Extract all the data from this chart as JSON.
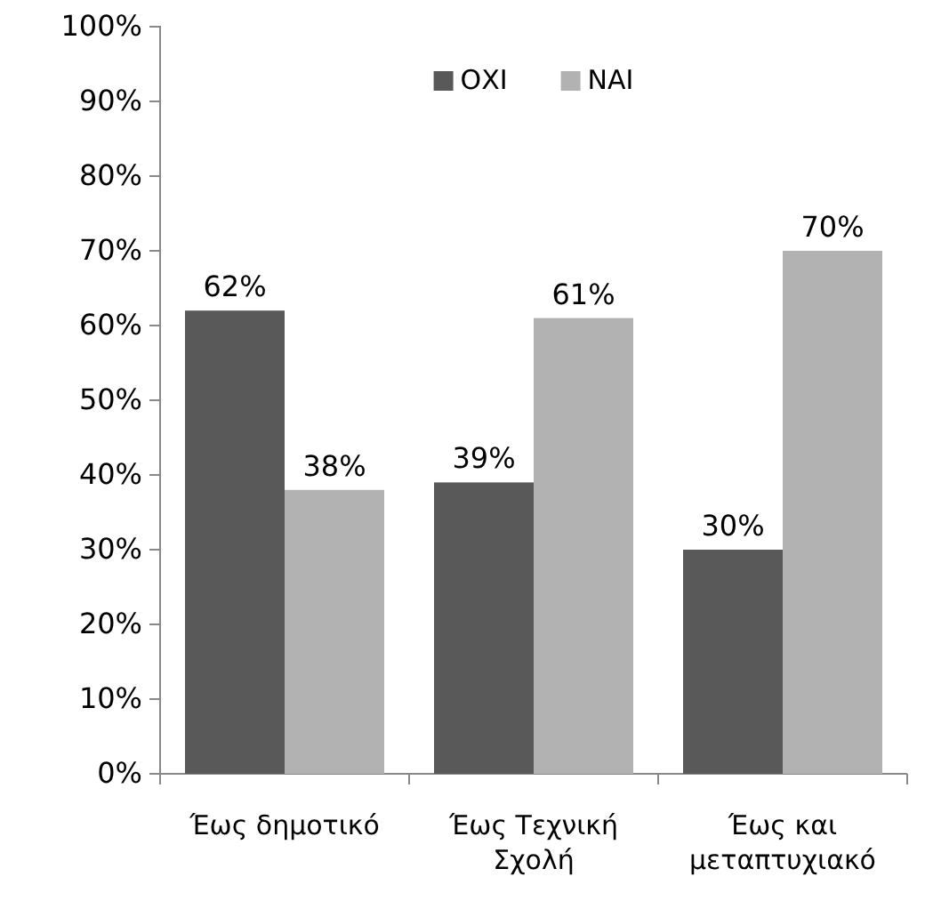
{
  "chart_data": {
    "type": "bar",
    "categories": [
      "Έως δημοτικό",
      "Έως Τεχνική Σχολή",
      "Έως και μεταπτυχιακό"
    ],
    "series": [
      {
        "name": "ΟΧΙ",
        "color": "#595959",
        "values": [
          62,
          39,
          30
        ],
        "value_labels": [
          "62%",
          "39%",
          "30%"
        ]
      },
      {
        "name": "ΝΑΙ",
        "color": "#b2b2b2",
        "values": [
          38,
          61,
          70
        ],
        "value_labels": [
          "38%",
          "61%",
          "70%"
        ]
      }
    ],
    "ylim": [
      0,
      100
    ],
    "yticks": [
      {
        "value": 0,
        "label": "0%"
      },
      {
        "value": 10,
        "label": "10%"
      },
      {
        "value": 20,
        "label": "20%"
      },
      {
        "value": 30,
        "label": "30%"
      },
      {
        "value": 40,
        "label": "40%"
      },
      {
        "value": 50,
        "label": "50%"
      },
      {
        "value": 60,
        "label": "60%"
      },
      {
        "value": 70,
        "label": "70%"
      },
      {
        "value": 80,
        "label": "80%"
      },
      {
        "value": 90,
        "label": "90%"
      },
      {
        "value": 100,
        "label": "100%"
      }
    ],
    "legend": "top",
    "grid": false
  }
}
